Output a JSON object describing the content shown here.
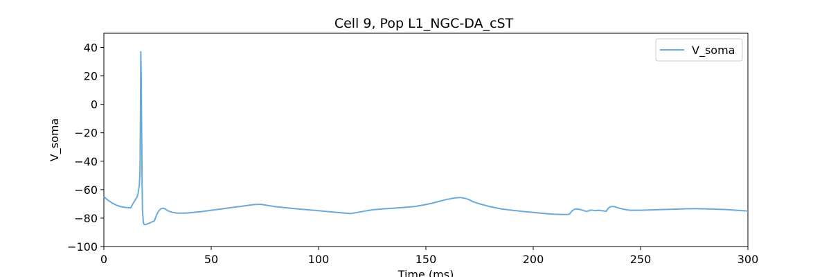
{
  "chart_data": {
    "type": "line",
    "title": "Cell 9, Pop L1_NGC-DA_cST",
    "xlabel": "Time (ms)",
    "ylabel": "V_soma",
    "xlim": [
      0,
      300
    ],
    "ylim": [
      -100,
      50
    ],
    "xticks": [
      0,
      50,
      100,
      150,
      200,
      250,
      300
    ],
    "yticks": [
      -100,
      -80,
      -60,
      -40,
      -20,
      0,
      20,
      40
    ],
    "grid": false,
    "legend_position": "top-right",
    "series": [
      {
        "name": "V_soma",
        "color": "#6aaad8",
        "x": [
          0,
          2,
          4,
          6,
          8,
          10,
          12.5,
          13.5,
          14.5,
          15.5,
          16,
          16.5,
          16.8,
          17.0,
          17.2,
          17.4,
          17.6,
          17.8,
          18.0,
          18.4,
          18.8,
          19.5,
          20.5,
          22,
          23.5,
          24.5,
          25.5,
          26.5,
          27.5,
          28.5,
          30,
          32,
          34,
          36,
          38,
          40,
          45,
          50,
          55,
          60,
          65,
          70,
          73,
          75,
          80,
          90,
          100,
          105,
          110,
          115,
          120,
          125,
          130,
          135,
          140,
          145,
          150,
          153,
          156,
          158,
          160,
          162,
          164,
          166,
          168,
          170,
          172,
          175,
          180,
          185,
          190,
          195,
          200,
          205,
          210,
          214,
          216,
          217,
          218,
          219,
          220,
          222,
          223,
          224,
          225,
          226,
          227,
          228,
          229,
          230,
          231,
          232,
          233,
          234,
          235,
          236,
          237,
          238,
          240,
          243,
          245,
          250,
          260,
          270,
          275,
          280,
          290,
          300
        ],
        "values": [
          -65,
          -67.5,
          -69.5,
          -71,
          -72,
          -72.5,
          -72.8,
          -70,
          -67.5,
          -65,
          -62,
          -57,
          -48,
          -20,
          37,
          20,
          -20,
          -55,
          -75,
          -83,
          -84.5,
          -84.5,
          -84,
          -83,
          -82,
          -78,
          -75,
          -73.5,
          -73,
          -73.5,
          -75,
          -76,
          -76.5,
          -76.5,
          -76.5,
          -76.3,
          -75.5,
          -74.5,
          -73.5,
          -72.5,
          -71.5,
          -70.5,
          -70.3,
          -70.8,
          -72,
          -73.5,
          -74.8,
          -75.5,
          -76.2,
          -76.8,
          -75.5,
          -74.2,
          -73.5,
          -73,
          -72.5,
          -71.8,
          -70.5,
          -69.5,
          -68.3,
          -67.5,
          -66.8,
          -66.2,
          -65.7,
          -65.5,
          -66,
          -67,
          -68.5,
          -70,
          -72,
          -73.5,
          -74.5,
          -75.3,
          -76,
          -76.7,
          -77.3,
          -77.5,
          -77.5,
          -77,
          -75,
          -74,
          -73.5,
          -74,
          -74.5,
          -75,
          -75.3,
          -74.8,
          -74.3,
          -74.6,
          -74.8,
          -74.5,
          -74.6,
          -74.8,
          -75,
          -75.2,
          -73,
          -72,
          -71.8,
          -72,
          -73,
          -74,
          -74.5,
          -74.5,
          -74,
          -73.5,
          -73.3,
          -73.5,
          -74,
          -75
        ]
      }
    ]
  }
}
